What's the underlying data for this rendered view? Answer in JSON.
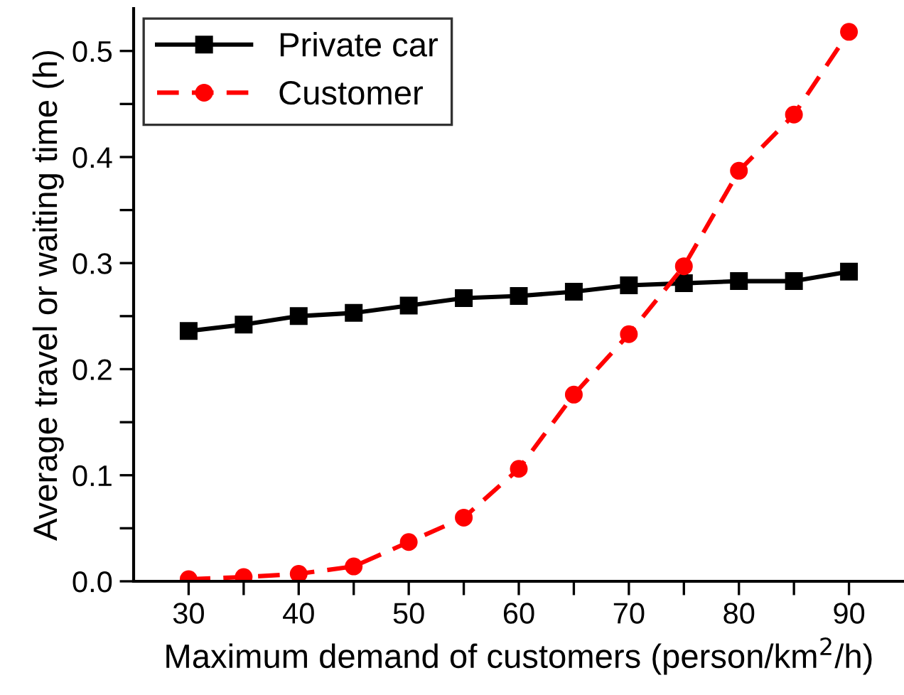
{
  "chart_data": {
    "type": "line",
    "xlabel": "Maximum demand of customers (person/km$^{2}$/h)",
    "ylabel": "Average travel or waiting time (h)",
    "x": [
      30,
      35,
      40,
      45,
      50,
      55,
      60,
      65,
      70,
      75,
      80,
      85,
      90
    ],
    "series": [
      {
        "name": "Private car",
        "color": "#000000",
        "marker": "square",
        "line_style": "solid",
        "values": [
          0.236,
          0.242,
          0.25,
          0.253,
          0.26,
          0.267,
          0.269,
          0.273,
          0.279,
          0.281,
          0.283,
          0.283,
          0.292
        ]
      },
      {
        "name": "Customer",
        "color": "#ff0000",
        "marker": "circle",
        "line_style": "dashed",
        "values": [
          0.002,
          0.004,
          0.007,
          0.014,
          0.037,
          0.06,
          0.106,
          0.176,
          0.233,
          0.297,
          0.387,
          0.44,
          0.518
        ]
      }
    ],
    "xlim": [
      25,
      95
    ],
    "xticks": [
      30,
      {
        "value": 35,
        "label": null
      },
      40,
      {
        "value": 45,
        "label": null
      },
      50,
      {
        "value": 55,
        "label": null
      },
      60,
      {
        "value": 65,
        "label": null
      },
      70,
      {
        "value": 75,
        "label": null
      },
      80,
      {
        "value": 85,
        "label": null
      },
      90
    ],
    "ylim": [
      0,
      0.54
    ],
    "yticks": [
      {
        "value": 0,
        "label": "0.0"
      },
      {
        "value": 0.05,
        "label": null
      },
      0.1,
      {
        "value": 0.15,
        "label": null
      },
      0.2,
      {
        "value": 0.25,
        "label": null
      },
      0.3,
      {
        "value": 0.35,
        "label": null
      },
      0.4,
      {
        "value": 0.45,
        "label": null
      },
      0.5
    ],
    "grid": false,
    "legend": "top left"
  }
}
